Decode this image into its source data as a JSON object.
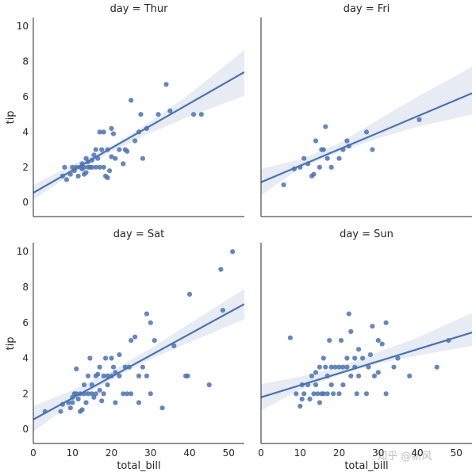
{
  "chart_data": {
    "type": "scatter",
    "facet_variable": "day",
    "xlabel": "total_bill",
    "ylabel": "tip",
    "xlim": [
      0,
      54
    ],
    "ylim": [
      -0.8,
      10.5
    ],
    "x_ticks": [
      "0",
      "10",
      "20",
      "30",
      "40",
      "50"
    ],
    "y_ticks": [
      "0",
      "2",
      "4",
      "6",
      "8",
      "10"
    ],
    "grid": false,
    "color": "#4c72b0",
    "panels": [
      {
        "title": "day = Thur",
        "regression": {
          "x0": 0,
          "y0": 0.55,
          "x1": 54,
          "y1": 7.4
        },
        "ci": [
          [
            0,
            0.15,
            1.0
          ],
          [
            10,
            1.65,
            2.15
          ],
          [
            20,
            2.9,
            3.2
          ],
          [
            30,
            3.95,
            4.6
          ],
          [
            40,
            4.9,
            6.15
          ],
          [
            54,
            6.05,
            8.65
          ]
        ],
        "points": [
          [
            7.5,
            1.5
          ],
          [
            8.0,
            2.0
          ],
          [
            8.5,
            1.3
          ],
          [
            9.5,
            1.6
          ],
          [
            10,
            2.0
          ],
          [
            10.5,
            1.8
          ],
          [
            11,
            2.0
          ],
          [
            11.5,
            1.5
          ],
          [
            12,
            2.0
          ],
          [
            12.5,
            1.9
          ],
          [
            12.5,
            2.2
          ],
          [
            13,
            2.0
          ],
          [
            13,
            1.6
          ],
          [
            13.5,
            1.7
          ],
          [
            13.5,
            2.5
          ],
          [
            14,
            2.0
          ],
          [
            14,
            2.3
          ],
          [
            14.5,
            2.0
          ],
          [
            15,
            2.0
          ],
          [
            15,
            2.4
          ],
          [
            15.5,
            2.7
          ],
          [
            16,
            3.0
          ],
          [
            16,
            2.0
          ],
          [
            16.5,
            2.5
          ],
          [
            17,
            2.0
          ],
          [
            17,
            4.0
          ],
          [
            17.5,
            3.0
          ],
          [
            18,
            4.0
          ],
          [
            18,
            2.0
          ],
          [
            18.5,
            1.5
          ],
          [
            19,
            3.0
          ],
          [
            19,
            1.4
          ],
          [
            19.5,
            1.8
          ],
          [
            20,
            4.2
          ],
          [
            20,
            2.6
          ],
          [
            20.5,
            3.9
          ],
          [
            21,
            2.5
          ],
          [
            22,
            3.0
          ],
          [
            23,
            2.2
          ],
          [
            23.5,
            3.0
          ],
          [
            24,
            2.9
          ],
          [
            25,
            5.8
          ],
          [
            26,
            3.5
          ],
          [
            27,
            4.0
          ],
          [
            27.5,
            5.0
          ],
          [
            28,
            2.5
          ],
          [
            29,
            4.2
          ],
          [
            32,
            5.0
          ],
          [
            34,
            6.7
          ],
          [
            35,
            5.2
          ],
          [
            41,
            5.0
          ],
          [
            43,
            5.0
          ]
        ]
      },
      {
        "title": "day = Fri",
        "regression": {
          "x0": 0,
          "y0": 1.15,
          "x1": 54,
          "y1": 6.2
        },
        "ci": [
          [
            0,
            0.4,
            1.9
          ],
          [
            10,
            1.95,
            2.45
          ],
          [
            20,
            2.85,
            3.35
          ],
          [
            30,
            3.65,
            4.7
          ],
          [
            40,
            4.3,
            6.0
          ],
          [
            54,
            5.0,
            7.7
          ]
        ],
        "points": [
          [
            5.8,
            1.0
          ],
          [
            8.5,
            1.9
          ],
          [
            10,
            2.0
          ],
          [
            11,
            2.5
          ],
          [
            12,
            2.2
          ],
          [
            13,
            1.5
          ],
          [
            13.5,
            1.6
          ],
          [
            14,
            3.5
          ],
          [
            15,
            2.0
          ],
          [
            15.5,
            3.0
          ],
          [
            16,
            3.0
          ],
          [
            16.5,
            4.3
          ],
          [
            17,
            2.5
          ],
          [
            18,
            2.0
          ],
          [
            20,
            2.5
          ],
          [
            21,
            3.0
          ],
          [
            22,
            3.5
          ],
          [
            22.5,
            3.2
          ],
          [
            27,
            4.0
          ],
          [
            28.5,
            3.0
          ],
          [
            40.5,
            4.7
          ]
        ]
      },
      {
        "title": "day = Sat",
        "regression": {
          "x0": 0,
          "y0": 0.55,
          "x1": 54,
          "y1": 7.05
        },
        "ci": [
          [
            0,
            -0.15,
            1.3
          ],
          [
            10,
            1.5,
            2.2
          ],
          [
            20,
            2.8,
            3.25
          ],
          [
            30,
            3.95,
            4.55
          ],
          [
            40,
            4.9,
            5.95
          ],
          [
            54,
            6.2,
            7.9
          ]
        ],
        "points": [
          [
            3,
            1.0
          ],
          [
            7,
            1.0
          ],
          [
            7.5,
            1.4
          ],
          [
            9,
            1.5
          ],
          [
            9.5,
            1.2
          ],
          [
            10,
            1.8
          ],
          [
            10,
            1.5
          ],
          [
            10.5,
            2.0
          ],
          [
            11,
            2.0
          ],
          [
            11,
            3.4
          ],
          [
            11.5,
            1.7
          ],
          [
            12,
            2.0
          ],
          [
            12,
            1.0
          ],
          [
            12.5,
            1.1
          ],
          [
            13,
            2.0
          ],
          [
            13,
            2.5
          ],
          [
            13.5,
            1.5
          ],
          [
            14,
            2.0
          ],
          [
            14,
            3.0
          ],
          [
            14.5,
            4.0
          ],
          [
            15,
            2.0
          ],
          [
            15,
            2.5
          ],
          [
            15.5,
            1.8
          ],
          [
            16,
            3.0
          ],
          [
            16,
            2.0
          ],
          [
            16.5,
            3.1
          ],
          [
            17,
            2.2
          ],
          [
            17,
            3.5
          ],
          [
            17.5,
            1.6
          ],
          [
            18,
            3.0
          ],
          [
            18,
            2.0
          ],
          [
            18.5,
            4.0
          ],
          [
            19,
            3.0
          ],
          [
            19,
            2.5
          ],
          [
            20,
            3.0
          ],
          [
            20,
            4.0
          ],
          [
            20.5,
            3.5
          ],
          [
            21,
            3.2
          ],
          [
            21,
            1.5
          ],
          [
            22,
            3.0
          ],
          [
            22,
            4.2
          ],
          [
            23,
            2.0
          ],
          [
            23.5,
            3.5
          ],
          [
            24,
            2.0
          ],
          [
            24.5,
            3.5
          ],
          [
            25,
            5.0
          ],
          [
            25,
            2.0
          ],
          [
            26,
            5.2
          ],
          [
            27,
            1.5
          ],
          [
            27,
            3.0
          ],
          [
            28,
            3.5
          ],
          [
            29,
            6.5
          ],
          [
            29,
            3.0
          ],
          [
            30,
            6.0
          ],
          [
            30,
            2.0
          ],
          [
            31,
            5.0
          ],
          [
            33,
            1.2
          ],
          [
            36,
            4.7
          ],
          [
            39,
            3.0
          ],
          [
            39.5,
            3.0
          ],
          [
            40,
            7.6
          ],
          [
            45,
            2.5
          ],
          [
            48,
            9.0
          ],
          [
            48.5,
            6.7
          ],
          [
            51,
            10.0
          ]
        ]
      },
      {
        "title": "day = Sun",
        "regression": {
          "x0": 0,
          "y0": 1.8,
          "x1": 54,
          "y1": 5.45
        },
        "ci": [
          [
            0,
            1.05,
            2.55
          ],
          [
            10,
            2.25,
            2.95
          ],
          [
            20,
            3.05,
            3.5
          ],
          [
            30,
            3.7,
            4.35
          ],
          [
            40,
            4.15,
            5.15
          ],
          [
            54,
            4.7,
            6.55
          ]
        ],
        "points": [
          [
            7.5,
            5.15
          ],
          [
            9,
            2.0
          ],
          [
            10,
            1.3
          ],
          [
            10.5,
            1.7
          ],
          [
            10.5,
            2.5
          ],
          [
            11,
            2.0
          ],
          [
            12,
            2.5
          ],
          [
            12.5,
            1.7
          ],
          [
            13,
            3.0
          ],
          [
            13.5,
            2.0
          ],
          [
            14,
            3.2
          ],
          [
            14,
            2.5
          ],
          [
            14.5,
            2.0
          ],
          [
            15,
            3.5
          ],
          [
            15,
            1.5
          ],
          [
            15.5,
            2.0
          ],
          [
            16,
            4.0
          ],
          [
            16,
            2.0
          ],
          [
            16.5,
            3.5
          ],
          [
            17,
            2.0
          ],
          [
            17,
            3.0
          ],
          [
            17.5,
            5.0
          ],
          [
            18,
            2.5
          ],
          [
            18,
            3.5
          ],
          [
            18.5,
            2.0
          ],
          [
            19,
            3.5
          ],
          [
            20,
            3.5
          ],
          [
            20,
            2.0
          ],
          [
            20.5,
            5.0
          ],
          [
            21,
            3.5
          ],
          [
            21,
            2.5
          ],
          [
            22,
            3.5
          ],
          [
            22,
            4.0
          ],
          [
            22.5,
            6.5
          ],
          [
            23,
            3.0
          ],
          [
            23,
            5.5
          ],
          [
            24,
            3.5
          ],
          [
            24,
            4.0
          ],
          [
            24.5,
            2.0
          ],
          [
            25,
            3.0
          ],
          [
            25,
            4.5
          ],
          [
            26,
            4.0
          ],
          [
            27,
            2.0
          ],
          [
            27.5,
            3.5
          ],
          [
            28,
            4.2
          ],
          [
            28.5,
            5.8
          ],
          [
            29,
            3.0
          ],
          [
            30,
            3.2
          ],
          [
            30,
            5.0
          ],
          [
            31,
            4.8
          ],
          [
            32,
            2.0
          ],
          [
            32,
            6.0
          ],
          [
            34,
            3.5
          ],
          [
            35,
            4.0
          ],
          [
            38,
            3.0
          ],
          [
            45,
            3.5
          ],
          [
            48,
            5.0
          ]
        ]
      }
    ]
  },
  "watermark": "知乎 @新风"
}
